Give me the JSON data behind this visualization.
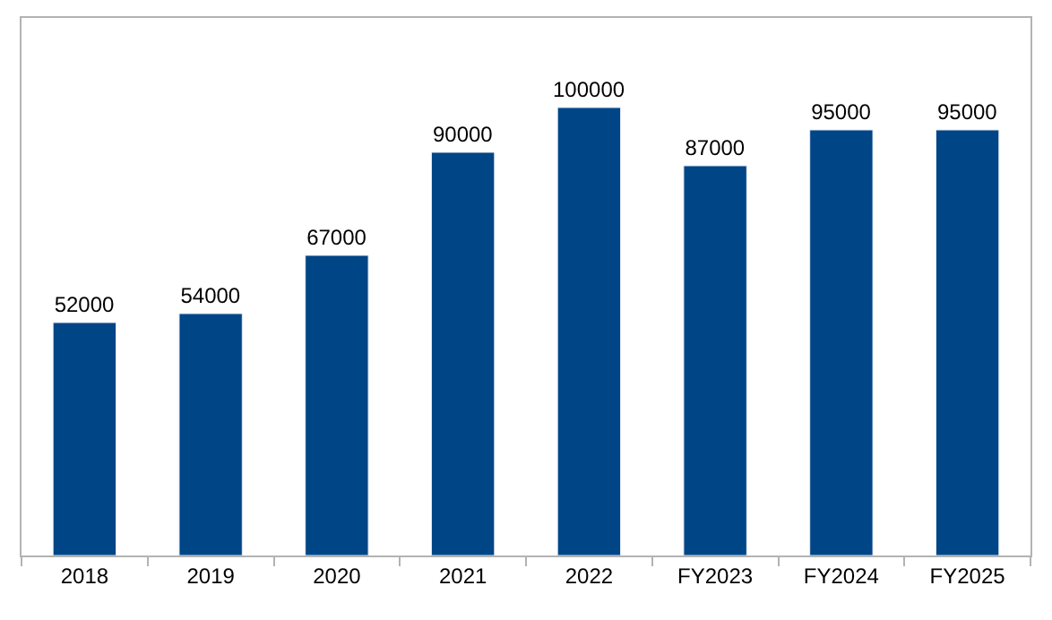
{
  "chart_data": {
    "type": "bar",
    "categories": [
      "2018",
      "2019",
      "2020",
      "2021",
      "2022",
      "FY2023",
      "FY2024",
      "FY2025"
    ],
    "values": [
      52000,
      54000,
      67000,
      90000,
      100000,
      87000,
      95000,
      95000
    ],
    "color": "#004586",
    "data_labels": true,
    "legend": false,
    "tick_labels": "x"
  }
}
